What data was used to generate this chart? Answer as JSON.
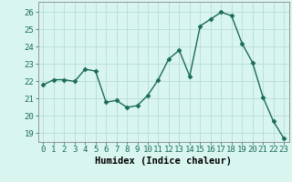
{
  "x": [
    0,
    1,
    2,
    3,
    4,
    5,
    6,
    7,
    8,
    9,
    10,
    11,
    12,
    13,
    14,
    15,
    16,
    17,
    18,
    19,
    20,
    21,
    22,
    23
  ],
  "y": [
    21.8,
    22.1,
    22.1,
    22.0,
    22.7,
    22.6,
    20.8,
    20.9,
    20.5,
    20.6,
    21.2,
    22.1,
    23.3,
    23.8,
    22.3,
    25.2,
    25.6,
    26.0,
    25.8,
    24.2,
    23.1,
    21.1,
    19.7,
    18.7
  ],
  "line_color": "#1a6b5a",
  "marker": "D",
  "marker_size": 2.5,
  "bg_color": "#d9f5f0",
  "grid_color": "#b8ddd8",
  "xlabel": "Humidex (Indice chaleur)",
  "ylabel_ticks": [
    19,
    20,
    21,
    22,
    23,
    24,
    25,
    26
  ],
  "ylim": [
    18.5,
    26.6
  ],
  "xlim": [
    -0.5,
    23.5
  ],
  "xticks": [
    0,
    1,
    2,
    3,
    4,
    5,
    6,
    7,
    8,
    9,
    10,
    11,
    12,
    13,
    14,
    15,
    16,
    17,
    18,
    19,
    20,
    21,
    22,
    23
  ],
  "tick_fontsize": 6.5,
  "xlabel_fontsize": 7.5,
  "line_width": 1.0
}
